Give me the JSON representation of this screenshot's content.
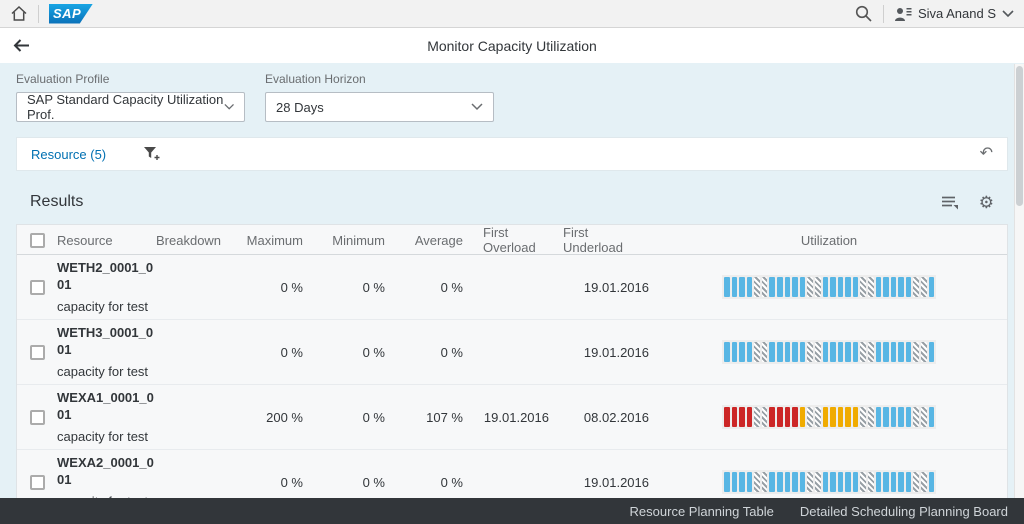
{
  "shell": {
    "logo_text": "SAP",
    "user_name": "Siva Anand S"
  },
  "header": {
    "title": "Monitor Capacity Utilization"
  },
  "filters": {
    "profile": {
      "label": "Evaluation Profile",
      "value": "SAP Standard Capacity Utilization Prof."
    },
    "horizon": {
      "label": "Evaluation Horizon",
      "value": "28 Days"
    }
  },
  "toolbar": {
    "resource_label": "Resource (5)"
  },
  "results": {
    "title": "Results",
    "columns": [
      "Resource",
      "Breakdown",
      "Maximum",
      "Minimum",
      "Average",
      "First Overload",
      "First Underload",
      "Utilization"
    ],
    "rows": [
      {
        "name_line1": "WETH2_0001_0",
        "name_line2": "01",
        "description": "capacity for test",
        "breakdown": "",
        "maximum": "0 %",
        "minimum": "0 %",
        "average": "0 %",
        "first_overload": "",
        "first_underload": "19.01.2016",
        "utilization": [
          "normal",
          "normal",
          "normal",
          "normal",
          "weekend",
          "weekend",
          "normal",
          "normal",
          "normal",
          "normal",
          "normal",
          "weekend",
          "weekend",
          "normal",
          "normal",
          "normal",
          "normal",
          "normal",
          "weekend",
          "weekend",
          "normal",
          "normal",
          "normal",
          "normal",
          "normal",
          "weekend",
          "weekend",
          "normal"
        ]
      },
      {
        "name_line1": "WETH3_0001_0",
        "name_line2": "01",
        "description": "capacity for test",
        "breakdown": "",
        "maximum": "0 %",
        "minimum": "0 %",
        "average": "0 %",
        "first_overload": "",
        "first_underload": "19.01.2016",
        "utilization": [
          "normal",
          "normal",
          "normal",
          "normal",
          "weekend",
          "weekend",
          "normal",
          "normal",
          "normal",
          "normal",
          "normal",
          "weekend",
          "weekend",
          "normal",
          "normal",
          "normal",
          "normal",
          "normal",
          "weekend",
          "weekend",
          "normal",
          "normal",
          "normal",
          "normal",
          "normal",
          "weekend",
          "weekend",
          "normal"
        ]
      },
      {
        "name_line1": "WEXA1_0001_0",
        "name_line2": "01",
        "description": "capacity for test",
        "breakdown": "",
        "maximum": "200 %",
        "minimum": "0 %",
        "average": "107 %",
        "first_overload": "19.01.2016",
        "first_underload": "08.02.2016",
        "utilization": [
          "overload",
          "overload",
          "overload",
          "overload",
          "weekend",
          "weekend",
          "overload",
          "overload",
          "overload",
          "overload",
          "warning",
          "weekend",
          "weekend",
          "warning",
          "warning",
          "warning",
          "warning",
          "warning",
          "weekend",
          "weekend",
          "normal",
          "normal",
          "normal",
          "normal",
          "normal",
          "weekend",
          "weekend",
          "normal"
        ]
      },
      {
        "name_line1": "WEXA2_0001_0",
        "name_line2": "01",
        "description": "capacity for test",
        "breakdown": "",
        "maximum": "0 %",
        "minimum": "0 %",
        "average": "0 %",
        "first_overload": "",
        "first_underload": "19.01.2016",
        "utilization": [
          "normal",
          "normal",
          "normal",
          "normal",
          "weekend",
          "weekend",
          "normal",
          "normal",
          "normal",
          "normal",
          "normal",
          "weekend",
          "weekend",
          "normal",
          "normal",
          "normal",
          "normal",
          "normal",
          "weekend",
          "weekend",
          "normal",
          "normal",
          "normal",
          "normal",
          "normal",
          "weekend",
          "weekend",
          "normal"
        ]
      }
    ]
  },
  "footer": {
    "links": [
      "Resource Planning Table",
      "Detailed Scheduling Planning Board"
    ]
  },
  "colors": {
    "page_bg": "#e5f1f6",
    "accent_blue": "#0070b2",
    "segment_normal": "#58b6e4",
    "segment_overload": "#cc2626",
    "segment_warning": "#f0ab00",
    "segment_weekend_stripe": "#98a0a6",
    "footer_bg": "#32363a"
  }
}
